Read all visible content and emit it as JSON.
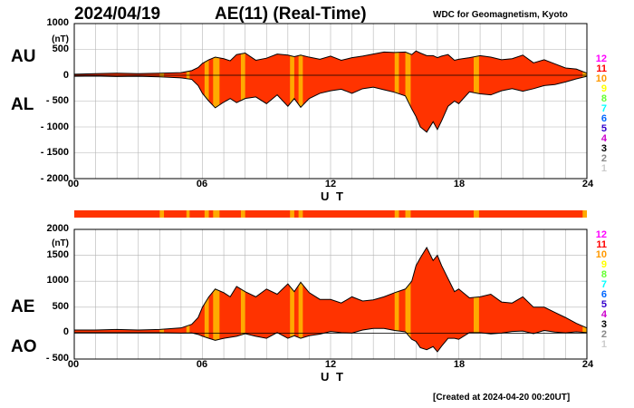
{
  "header": {
    "date": "2024/04/19",
    "index": "AE(11) (Real-Time)",
    "institution": "WDC for Geomagnetism, Kyoto",
    "created": "[Created at 2024-04-20 00:20UT]"
  },
  "legend": {
    "labels": [
      "12",
      "11",
      "10",
      "9",
      "8",
      "7",
      "6",
      "5",
      "4",
      "3",
      "2",
      "1"
    ],
    "colors": [
      "#ff00ff",
      "#ff0000",
      "#ff9900",
      "#ffff00",
      "#66ff33",
      "#00ffff",
      "#0066ff",
      "#3300cc",
      "#cc00cc",
      "#000000",
      "#888888",
      "#cccccc"
    ]
  },
  "colors": {
    "fill_main": "#ff3300",
    "fill_alt": "#ffaa00",
    "grid": "#b4b4b4"
  },
  "chart_data": [
    {
      "type": "area",
      "name": "AU / AL",
      "panel_labels": [
        "AU",
        "AL"
      ],
      "unit": "(nT)",
      "xlabel": "U T",
      "xlim": [
        0,
        24
      ],
      "ylim": [
        -2000,
        1000
      ],
      "xticks": [
        "00",
        "06",
        "12",
        "18",
        "24"
      ],
      "yticks": [
        "1000",
        "500",
        "0",
        "- 500",
        "- 1000",
        "- 1500",
        "- 2000"
      ],
      "grid": true,
      "x": [
        0,
        1,
        2,
        3,
        4,
        5,
        5.5,
        5.8,
        6,
        6.3,
        6.6,
        7,
        7.3,
        7.6,
        8,
        8.5,
        9,
        9.5,
        10,
        10.3,
        10.6,
        11,
        11.5,
        12,
        12.5,
        13,
        13.5,
        14,
        14.5,
        15,
        15.5,
        15.8,
        16,
        16.2,
        16.5,
        16.8,
        17,
        17.2,
        17.5,
        17.8,
        18,
        18.5,
        19,
        19.5,
        20,
        20.5,
        21,
        21.5,
        22,
        22.5,
        23,
        23.5,
        24
      ],
      "series": [
        {
          "name": "AU",
          "values": [
            20,
            30,
            40,
            30,
            40,
            50,
            90,
            150,
            230,
            300,
            350,
            320,
            280,
            400,
            430,
            290,
            330,
            410,
            390,
            360,
            390,
            350,
            310,
            370,
            290,
            340,
            370,
            410,
            450,
            440,
            450,
            400,
            470,
            430,
            380,
            380,
            340,
            370,
            400,
            290,
            310,
            340,
            380,
            350,
            300,
            320,
            390,
            240,
            300,
            220,
            140,
            120,
            40
          ]
        },
        {
          "name": "AL",
          "values": [
            -20,
            -15,
            -25,
            -20,
            -30,
            -50,
            -80,
            -200,
            -350,
            -500,
            -630,
            -520,
            -450,
            -530,
            -450,
            -420,
            -550,
            -380,
            -600,
            -450,
            -620,
            -450,
            -350,
            -300,
            -270,
            -350,
            -260,
            -230,
            -280,
            -330,
            -400,
            -650,
            -800,
            -1000,
            -1100,
            -900,
            -1050,
            -880,
            -600,
            -500,
            -550,
            -320,
            -360,
            -380,
            -300,
            -260,
            -310,
            -260,
            -200,
            -180,
            -130,
            -70,
            -20
          ]
        }
      ],
      "band_blocks": [
        [
          4,
          4.2
        ],
        [
          5.25,
          5.4
        ],
        [
          6.1,
          6.3
        ],
        [
          6.5,
          6.8
        ],
        [
          7.8,
          8.0
        ],
        [
          10.1,
          10.3
        ],
        [
          10.5,
          10.7
        ],
        [
          15.0,
          15.2
        ],
        [
          15.5,
          15.75
        ],
        [
          18.7,
          18.95
        ],
        [
          23.8,
          24
        ]
      ]
    },
    {
      "type": "area",
      "name": "AE / AO",
      "panel_labels": [
        "AE",
        "AO"
      ],
      "unit": "(nT)",
      "xlabel": "U T",
      "xlim": [
        0,
        24
      ],
      "ylim": [
        -500,
        2000
      ],
      "xticks": [
        "00",
        "06",
        "12",
        "18",
        "24"
      ],
      "yticks": [
        "2000",
        "1500",
        "1000",
        "500",
        "0",
        "- 500"
      ],
      "grid": true,
      "x": [
        0,
        1,
        2,
        3,
        4,
        5,
        5.5,
        5.8,
        6,
        6.3,
        6.6,
        7,
        7.3,
        7.6,
        8,
        8.5,
        9,
        9.5,
        10,
        10.3,
        10.6,
        11,
        11.5,
        12,
        12.5,
        13,
        13.5,
        14,
        14.5,
        15,
        15.5,
        15.8,
        16,
        16.2,
        16.5,
        16.8,
        17,
        17.2,
        17.5,
        17.8,
        18,
        18.5,
        19,
        19.5,
        20,
        20.5,
        21,
        21.5,
        22,
        22.5,
        23,
        23.5,
        24
      ],
      "series": [
        {
          "name": "AE",
          "values": [
            60,
            60,
            70,
            60,
            70,
            100,
            170,
            300,
            500,
            700,
            850,
            780,
            700,
            900,
            800,
            700,
            850,
            750,
            950,
            800,
            980,
            780,
            650,
            650,
            580,
            700,
            620,
            640,
            700,
            780,
            850,
            1000,
            1300,
            1450,
            1650,
            1400,
            1500,
            1300,
            1050,
            800,
            850,
            680,
            700,
            750,
            600,
            580,
            700,
            500,
            500,
            400,
            300,
            190,
            100
          ]
        },
        {
          "name": "AO",
          "values": [
            10,
            10,
            10,
            10,
            10,
            0,
            5,
            -25,
            -60,
            -100,
            -140,
            -100,
            -80,
            -60,
            -10,
            -60,
            -100,
            10,
            -100,
            -50,
            -100,
            -50,
            -20,
            30,
            10,
            0,
            60,
            90,
            90,
            50,
            25,
            -120,
            -160,
            -280,
            -320,
            -260,
            -360,
            -250,
            -100,
            -100,
            -120,
            10,
            10,
            -15,
            0,
            30,
            40,
            -10,
            50,
            20,
            5,
            25,
            10
          ]
        }
      ],
      "band_blocks": [
        [
          4,
          4.2
        ],
        [
          5.25,
          5.4
        ],
        [
          6.1,
          6.3
        ],
        [
          6.5,
          6.8
        ],
        [
          7.8,
          8.0
        ],
        [
          10.1,
          10.3
        ],
        [
          10.5,
          10.7
        ],
        [
          15.0,
          15.2
        ],
        [
          15.5,
          15.75
        ],
        [
          18.7,
          18.95
        ],
        [
          23.8,
          24
        ]
      ]
    }
  ]
}
